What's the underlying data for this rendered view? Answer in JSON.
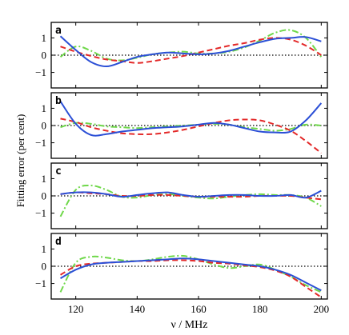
{
  "chart_data": {
    "type": "line",
    "xlabel": "ν / MHz",
    "ylabel": "Fitting error (per cent)",
    "xlim": [
      112,
      202
    ],
    "ylim": [
      -1.9,
      1.9
    ],
    "xticks": [
      120,
      140,
      160,
      180,
      200
    ],
    "yticks": [
      -1,
      0,
      1
    ],
    "x": [
      115,
      120,
      125,
      130,
      135,
      140,
      145,
      150,
      155,
      160,
      165,
      170,
      175,
      180,
      185,
      190,
      195,
      200
    ],
    "colors": {
      "solid": "#2b4fd6",
      "dashed": "#e32929",
      "dashdot": "#6fd84a",
      "zeroline": "#000000"
    },
    "zero_line_style": "dotted",
    "panels": [
      {
        "label": "a",
        "series": [
          {
            "style": "solid",
            "color": "#2b4fd6",
            "values": [
              1.1,
              0.3,
              -0.4,
              -0.65,
              -0.4,
              -0.1,
              0.05,
              0.15,
              0.1,
              0.05,
              0.1,
              0.25,
              0.5,
              0.75,
              0.95,
              1.0,
              1.05,
              0.8
            ]
          },
          {
            "style": "dashed",
            "color": "#e32929",
            "values": [
              0.5,
              0.2,
              -0.05,
              -0.25,
              -0.35,
              -0.45,
              -0.35,
              -0.2,
              -0.05,
              0.15,
              0.35,
              0.55,
              0.7,
              0.9,
              1.0,
              0.9,
              0.55,
              0.0
            ]
          },
          {
            "style": "dashdot",
            "color": "#6fd84a",
            "values": [
              -0.1,
              0.5,
              0.25,
              -0.2,
              -0.3,
              -0.15,
              0.05,
              0.15,
              0.2,
              0.1,
              0.1,
              0.2,
              0.45,
              0.85,
              1.3,
              1.45,
              1.0,
              -0.1
            ]
          }
        ]
      },
      {
        "label": "b",
        "series": [
          {
            "style": "solid",
            "color": "#2b4fd6",
            "values": [
              1.4,
              0.1,
              -0.55,
              -0.5,
              -0.35,
              -0.25,
              -0.15,
              -0.1,
              -0.05,
              0.05,
              0.15,
              0.05,
              -0.15,
              -0.35,
              -0.4,
              -0.35,
              0.3,
              1.3
            ]
          },
          {
            "style": "dashed",
            "color": "#e32929",
            "values": [
              0.4,
              0.2,
              -0.1,
              -0.3,
              -0.45,
              -0.5,
              -0.5,
              -0.4,
              -0.25,
              -0.05,
              0.15,
              0.3,
              0.35,
              0.3,
              0.05,
              -0.3,
              -0.9,
              -1.6
            ]
          },
          {
            "style": "dashdot",
            "color": "#6fd84a",
            "values": [
              -0.1,
              0.15,
              0.1,
              -0.05,
              -0.1,
              -0.15,
              -0.1,
              -0.05,
              0.0,
              0.05,
              0.1,
              0.05,
              -0.1,
              -0.2,
              -0.3,
              -0.2,
              0.05,
              0.0
            ]
          }
        ]
      },
      {
        "label": "c",
        "series": [
          {
            "style": "solid",
            "color": "#2b4fd6",
            "values": [
              0.1,
              0.2,
              0.2,
              0.1,
              -0.05,
              0.05,
              0.15,
              0.2,
              0.05,
              -0.05,
              0.0,
              0.05,
              0.05,
              0.0,
              0.0,
              0.05,
              -0.1,
              0.3
            ]
          },
          {
            "style": "dashed",
            "color": "#e32929",
            "values": [
              0.1,
              0.2,
              0.15,
              0.1,
              0.0,
              0.0,
              0.05,
              0.05,
              0.0,
              -0.05,
              -0.05,
              -0.05,
              -0.05,
              0.0,
              0.0,
              0.0,
              -0.1,
              -0.2
            ]
          },
          {
            "style": "dashdot",
            "color": "#6fd84a",
            "values": [
              -1.2,
              0.35,
              0.6,
              0.35,
              -0.05,
              -0.1,
              0.05,
              0.1,
              0.0,
              -0.1,
              -0.15,
              -0.05,
              0.05,
              0.1,
              0.05,
              0.05,
              -0.1,
              -0.6
            ]
          }
        ]
      },
      {
        "label": "d",
        "series": [
          {
            "style": "solid",
            "color": "#2b4fd6",
            "values": [
              -0.7,
              -0.2,
              0.1,
              0.2,
              0.25,
              0.3,
              0.35,
              0.4,
              0.45,
              0.4,
              0.3,
              0.2,
              0.1,
              0.0,
              -0.2,
              -0.5,
              -0.95,
              -1.4
            ]
          },
          {
            "style": "dashed",
            "color": "#e32929",
            "values": [
              -0.5,
              0.0,
              0.15,
              0.2,
              0.25,
              0.3,
              0.3,
              0.35,
              0.35,
              0.3,
              0.2,
              0.15,
              0.05,
              -0.05,
              -0.25,
              -0.6,
              -1.2,
              -1.8
            ]
          },
          {
            "style": "dashdot",
            "color": "#6fd84a",
            "values": [
              -1.5,
              0.2,
              0.55,
              0.5,
              0.35,
              0.3,
              0.4,
              0.55,
              0.6,
              0.4,
              0.1,
              -0.1,
              0.0,
              0.1,
              -0.2,
              -0.6,
              -1.1,
              -1.5
            ]
          }
        ]
      }
    ]
  }
}
